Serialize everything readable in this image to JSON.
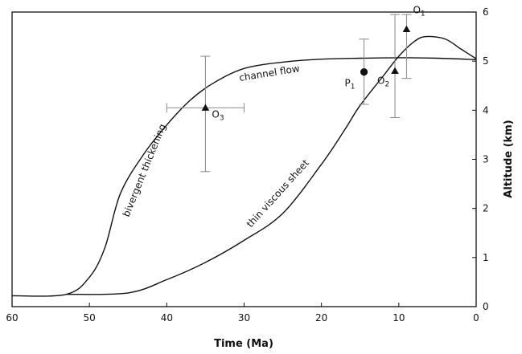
{
  "chart_data": {
    "type": "line",
    "xlabel": "Time (Ma)",
    "ylabel": "Altitude (km)",
    "xlim": [
      60,
      0
    ],
    "ylim": [
      0,
      6
    ],
    "x_reversed": true,
    "x_ticks": [
      60,
      50,
      40,
      30,
      20,
      10,
      0
    ],
    "y_ticks": [
      0,
      1,
      2,
      3,
      4,
      5,
      6
    ],
    "y_axis_side": "right",
    "grid": false,
    "series": [
      {
        "name": "bivergent thickening",
        "curve_label": "bivergent thickening",
        "x": [
          60,
          53,
          50,
          48,
          46,
          43,
          40,
          37,
          34,
          30,
          25,
          20,
          15,
          10,
          5,
          0
        ],
        "y": [
          0.22,
          0.25,
          0.6,
          1.2,
          2.3,
          3.1,
          3.7,
          4.2,
          4.55,
          4.85,
          4.98,
          5.04,
          5.06,
          5.07,
          5.06,
          5.03
        ]
      },
      {
        "name": "channel flow",
        "curve_label": "channel flow",
        "x": [],
        "y": []
      },
      {
        "name": "thin viscous sheet",
        "curve_label": "thin viscous sheet",
        "x": [
          53,
          45,
          40,
          35,
          30,
          25,
          20,
          17,
          15,
          12,
          10,
          8,
          6.5,
          4,
          2,
          0
        ],
        "y": [
          0.25,
          0.28,
          0.55,
          0.9,
          1.35,
          1.9,
          2.9,
          3.6,
          4.1,
          4.7,
          5.1,
          5.4,
          5.5,
          5.45,
          5.25,
          5.05
        ]
      }
    ],
    "observations": [
      {
        "label": "O",
        "subscript": "1",
        "marker": "triangle",
        "x": 9,
        "y": 5.65,
        "y_err": [
          4.65,
          5.95
        ],
        "x_err": null
      },
      {
        "label": "O",
        "subscript": "2",
        "marker": "triangle",
        "x": 10.5,
        "y": 4.8,
        "y_err": [
          3.85,
          5.95
        ],
        "x_err": null
      },
      {
        "label": "O",
        "subscript": "3",
        "marker": "triangle",
        "x": 35,
        "y": 4.05,
        "y_err": [
          2.75,
          5.1
        ],
        "x_err": [
          40,
          30
        ]
      },
      {
        "label": "P",
        "subscript": "1",
        "marker": "circle",
        "x": 14.5,
        "y": 4.78,
        "y_err": [
          4.12,
          5.45
        ],
        "x_err": null
      }
    ]
  }
}
